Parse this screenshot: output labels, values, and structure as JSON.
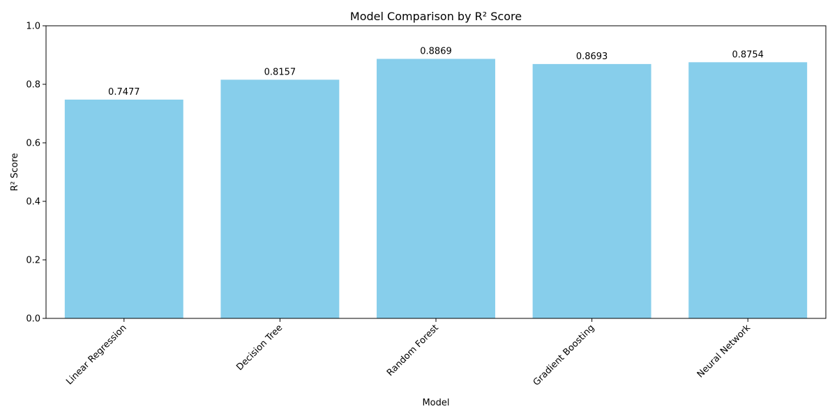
{
  "chart_data": {
    "type": "bar",
    "title": "Model Comparison by R² Score",
    "xlabel": "Model",
    "ylabel": "R² Score",
    "categories": [
      "Linear Regression",
      "Decision Tree",
      "Random Forest",
      "Gradient Boosting",
      "Neural Network"
    ],
    "values": [
      0.7477,
      0.8157,
      0.8869,
      0.8693,
      0.8754
    ],
    "value_labels": [
      "0.7477",
      "0.8157",
      "0.8869",
      "0.8693",
      "0.8754"
    ],
    "ylim": [
      0,
      1.0
    ],
    "yticks": [
      "0.0",
      "0.2",
      "0.4",
      "0.6",
      "0.8",
      "1.0"
    ],
    "bar_color": "#87ceeb",
    "grid": false,
    "legend": "none"
  }
}
